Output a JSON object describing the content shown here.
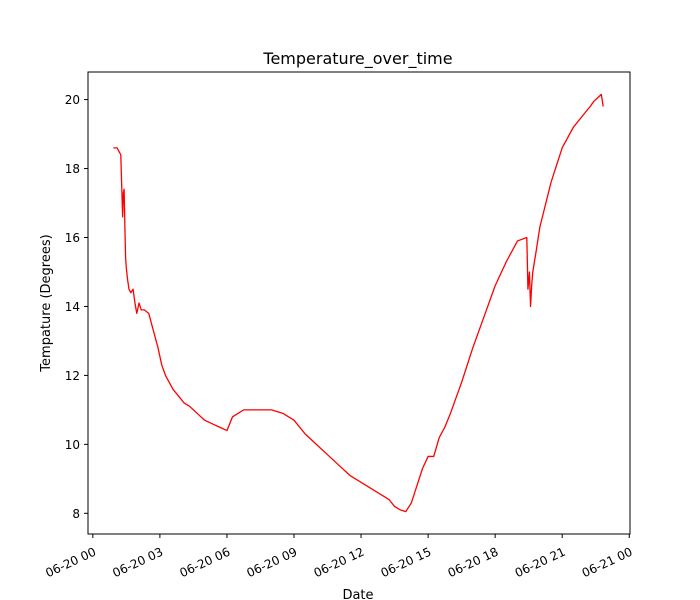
{
  "chart_data": {
    "type": "line",
    "title": "Temperature_over_time",
    "xlabel": "Date",
    "ylabel": "Tempature (Degrees)",
    "grid": false,
    "line_color": "#ff0000",
    "xlim": [
      "2023-06-19T23:47",
      "2023-06-21T00:02"
    ],
    "ylim": [
      7.4,
      20.8
    ],
    "x_ticks": [
      {
        "t": "2023-06-20T00:00",
        "label": "06-20 00"
      },
      {
        "t": "2023-06-20T03:00",
        "label": "06-20 03"
      },
      {
        "t": "2023-06-20T06:00",
        "label": "06-20 06"
      },
      {
        "t": "2023-06-20T09:00",
        "label": "06-20 09"
      },
      {
        "t": "2023-06-20T12:00",
        "label": "06-20 12"
      },
      {
        "t": "2023-06-20T15:00",
        "label": "06-20 15"
      },
      {
        "t": "2023-06-20T18:00",
        "label": "06-20 18"
      },
      {
        "t": "2023-06-20T21:00",
        "label": "06-20 21"
      },
      {
        "t": "2023-06-21T00:00",
        "label": "06-21 00"
      }
    ],
    "y_ticks": [
      8,
      10,
      12,
      14,
      16,
      18,
      20
    ],
    "series": [
      {
        "x": [
          "2023-06-20T00:55",
          "2023-06-20T01:05",
          "2023-06-20T01:10",
          "2023-06-20T01:15",
          "2023-06-20T01:20",
          "2023-06-20T01:22",
          "2023-06-20T01:24",
          "2023-06-20T01:26",
          "2023-06-20T01:28",
          "2023-06-20T01:30",
          "2023-06-20T01:33",
          "2023-06-20T01:37",
          "2023-06-20T01:42",
          "2023-06-20T01:48",
          "2023-06-20T01:53",
          "2023-06-20T01:58",
          "2023-06-20T02:04",
          "2023-06-20T02:10",
          "2023-06-20T02:18",
          "2023-06-20T02:30",
          "2023-06-20T02:45",
          "2023-06-20T02:55",
          "2023-06-20T03:05",
          "2023-06-20T03:15",
          "2023-06-20T03:25",
          "2023-06-20T03:35",
          "2023-06-20T03:50",
          "2023-06-20T04:05",
          "2023-06-20T04:20",
          "2023-06-20T04:40",
          "2023-06-20T05:00",
          "2023-06-20T05:20",
          "2023-06-20T05:40",
          "2023-06-20T06:00",
          "2023-06-20T06:15",
          "2023-06-20T06:30",
          "2023-06-20T06:45",
          "2023-06-20T07:00",
          "2023-06-20T07:15",
          "2023-06-20T07:30",
          "2023-06-20T08:00",
          "2023-06-20T08:30",
          "2023-06-20T09:00",
          "2023-06-20T09:30",
          "2023-06-20T10:00",
          "2023-06-20T10:30",
          "2023-06-20T11:00",
          "2023-06-20T11:30",
          "2023-06-20T12:00",
          "2023-06-20T12:30",
          "2023-06-20T13:00",
          "2023-06-20T13:15",
          "2023-06-20T13:30",
          "2023-06-20T13:45",
          "2023-06-20T14:00",
          "2023-06-20T14:15",
          "2023-06-20T14:30",
          "2023-06-20T14:45",
          "2023-06-20T15:00",
          "2023-06-20T15:15",
          "2023-06-20T15:30",
          "2023-06-20T15:45",
          "2023-06-20T16:00",
          "2023-06-20T16:30",
          "2023-06-20T17:00",
          "2023-06-20T17:30",
          "2023-06-20T18:00",
          "2023-06-20T18:30",
          "2023-06-20T19:00",
          "2023-06-20T19:25",
          "2023-06-20T19:28",
          "2023-06-20T19:32",
          "2023-06-20T19:35",
          "2023-06-20T19:38",
          "2023-06-20T19:41",
          "2023-06-20T19:50",
          "2023-06-20T20:00",
          "2023-06-20T20:30",
          "2023-06-20T21:00",
          "2023-06-20T21:30",
          "2023-06-20T22:00",
          "2023-06-20T22:15",
          "2023-06-20T22:25",
          "2023-06-20T22:35",
          "2023-06-20T22:45",
          "2023-06-20T22:50"
        ],
        "y": [
          18.6,
          18.6,
          18.5,
          18.4,
          16.6,
          17.3,
          17.4,
          16.3,
          15.4,
          15.1,
          14.8,
          14.5,
          14.4,
          14.5,
          14.1,
          13.8,
          14.1,
          13.9,
          13.9,
          13.8,
          13.2,
          12.8,
          12.3,
          12.0,
          11.8,
          11.6,
          11.4,
          11.2,
          11.1,
          10.9,
          10.7,
          10.6,
          10.5,
          10.4,
          10.8,
          10.9,
          11.0,
          11.0,
          11.0,
          11.0,
          11.0,
          10.9,
          10.7,
          10.3,
          10.0,
          9.7,
          9.4,
          9.1,
          8.9,
          8.7,
          8.5,
          8.4,
          8.2,
          8.1,
          8.05,
          8.3,
          8.8,
          9.3,
          9.65,
          9.65,
          10.2,
          10.5,
          10.9,
          11.8,
          12.8,
          13.7,
          14.6,
          15.3,
          15.9,
          16.0,
          14.5,
          15.0,
          14.0,
          14.6,
          15.0,
          15.6,
          16.3,
          17.6,
          18.6,
          19.2,
          19.6,
          19.8,
          19.95,
          20.05,
          20.15,
          19.8
        ]
      }
    ]
  }
}
